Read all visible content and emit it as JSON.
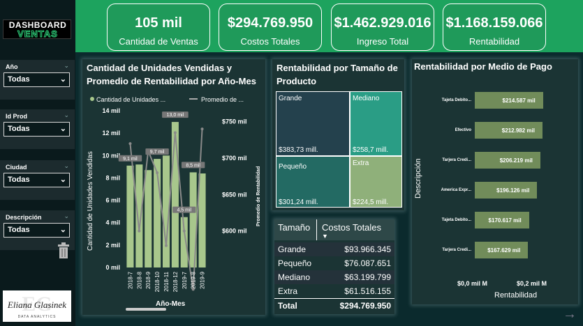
{
  "header": {
    "logo_line1": "DASHBOARD",
    "logo_line2": "VENTAS"
  },
  "kpis": [
    {
      "value": "105 mil",
      "label": "Cantidad de Ventas"
    },
    {
      "value": "$294.769.950",
      "label": "Costos Totales"
    },
    {
      "value": "$1.462.929.016",
      "label": "Ingreso Total"
    },
    {
      "value": "$1.168.159.066",
      "label": "Rentabilidad"
    }
  ],
  "filters": [
    {
      "label": "Año",
      "value": "Todas"
    },
    {
      "label": "Id Prod",
      "value": "Todas"
    },
    {
      "label": "Ciudad",
      "value": "Todas"
    },
    {
      "label": "Descripción",
      "value": "Todas"
    }
  ],
  "signature": {
    "initials": "EG",
    "name": "Eliana Glasinek",
    "subtitle": "DATA ANALYTICS"
  },
  "combo": {
    "title_line1": "Cantidad de Unidades Vendidas y",
    "title_line2": "Promedio de Rentabilidad por Año-Mes",
    "legend1": "Cantidad de Unidades ...",
    "legend2": "Promedio de ...",
    "ylabel_left": "Cantidad de Unidades Vendidas",
    "ylabel_right": "Promedio de Rentabilidad",
    "xlabel": "Año-Mes"
  },
  "treemap": {
    "title_line1": "Rentabilidad por Tamaño de",
    "title_line2": "Producto",
    "cells": [
      {
        "name": "Grande",
        "value": "$383,73 mill.",
        "color": "#24414d"
      },
      {
        "name": "Mediano",
        "value": "$258,7 mill.",
        "color": "#2a9d85"
      },
      {
        "name": "Pequeño",
        "value": "$301,24 mill.",
        "color": "#236a63"
      },
      {
        "name": "Extra",
        "value": "$224,5 mill.",
        "color": "#8fb07a"
      }
    ]
  },
  "table": {
    "headers": [
      "Tamaño",
      "Costos Totales"
    ],
    "rows": [
      [
        "Grande",
        "$93.966.345"
      ],
      [
        "Pequeño",
        "$76.087.651"
      ],
      [
        "Mediano",
        "$63.199.799"
      ],
      [
        "Extra",
        "$61.516.155"
      ]
    ],
    "total": [
      "Total",
      "$294.769.950"
    ]
  },
  "payment": {
    "title": "Rentabilidad por Medio de Pago",
    "ylabel": "Descripción",
    "xlabel": "Rentabilidad",
    "xticks": [
      "$0,0 mil M",
      "$0,2 mil M"
    ]
  },
  "chart_data": [
    {
      "type": "bar",
      "title": "Cantidad de Unidades Vendidas y Promedio de Rentabilidad por Año-Mes",
      "categories": [
        "2018-7",
        "2018-8",
        "2018-9",
        "2018-10",
        "2018-11",
        "2018-12",
        "2019-7",
        "2019-8",
        "2019-9"
      ],
      "series": [
        {
          "name": "Cantidad de Unidades ...",
          "type": "bar",
          "values": [
            9.1,
            9.2,
            8.7,
            9.7,
            10.0,
            13.0,
            4.5,
            8.5,
            8.4
          ]
        },
        {
          "name": "Promedio de ...",
          "type": "line",
          "values": [
            720,
            600,
            710,
            680,
            580,
            735,
            600,
            520,
            740
          ]
        }
      ],
      "y_left": {
        "ticks": [
          "0 mil",
          "2 mil",
          "4 mil",
          "6 mil",
          "8 mil",
          "10 mil",
          "12 mil",
          "14 mil"
        ],
        "range": [
          0,
          14
        ]
      },
      "y_right": {
        "ticks": [
          "$600 mil",
          "$650 mil",
          "$700 mil",
          "$750 mil"
        ],
        "range": [
          550,
          765
        ]
      },
      "data_labels": [
        {
          "index": 0,
          "text": "9,1 mil"
        },
        {
          "index": 3,
          "text": "9,7 mil"
        },
        {
          "index": 5,
          "text": "13,0 mil"
        },
        {
          "index": 6,
          "text": "4,5 mil"
        },
        {
          "index": 7,
          "text": "8,5 mil"
        }
      ],
      "bar_color": "#a8c78c",
      "line_color": "#8a8a8a"
    },
    {
      "type": "bar",
      "orientation": "horizontal",
      "title": "Rentabilidad por Medio de Pago",
      "categories": [
        "Tajeta Debito...",
        "Efectivo",
        "Tarjera Credi...",
        "America Expr...",
        "Tajeta Debito...",
        "Tarjera Credi..."
      ],
      "values": [
        214587,
        212982,
        206219,
        196126,
        170617,
        167629
      ],
      "value_labels": [
        "$214.587 mil",
        "$212.982 mil",
        "$206.219 mil",
        "$196.126 mil",
        "$170.617 mil",
        "$167.629 mil"
      ],
      "bar_color": "#718c5a"
    }
  ]
}
